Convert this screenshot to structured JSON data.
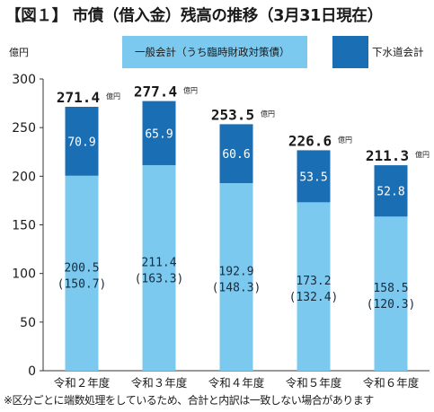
{
  "title": "【図１】 市債（借入金）残高の推移（3月31日現在）",
  "unit": "億円",
  "note": "※区分ごとに端数処理をしているため、合計と内訳は一致しない場合があります",
  "colors": {
    "general": "#7cc9ef",
    "sewer": "#1a6fb4"
  },
  "chart_data": {
    "type": "bar",
    "stacked": true,
    "categories": [
      "令和２年度",
      "令和３年度",
      "令和４年度",
      "令和５年度",
      "令和６年度"
    ],
    "series": [
      {
        "name": "一般会計（うち臨時財政対策債）",
        "values": [
          200.5,
          211.4,
          192.9,
          173.2,
          158.5
        ],
        "sub_labels": [
          "(150.7)",
          "(163.3)",
          "(148.3)",
          "(132.4)",
          "(120.3)"
        ]
      },
      {
        "name": "下水道会計",
        "values": [
          70.9,
          65.9,
          60.6,
          53.5,
          52.8
        ]
      }
    ],
    "totals": [
      "271.4",
      "277.4",
      "253.5",
      "226.6",
      "211.3"
    ],
    "total_unit": "億円",
    "yticks": [
      "0",
      "50",
      "100",
      "150",
      "200",
      "250",
      "300"
    ],
    "ylim": [
      0,
      300
    ],
    "grid": false,
    "legend": "top"
  }
}
